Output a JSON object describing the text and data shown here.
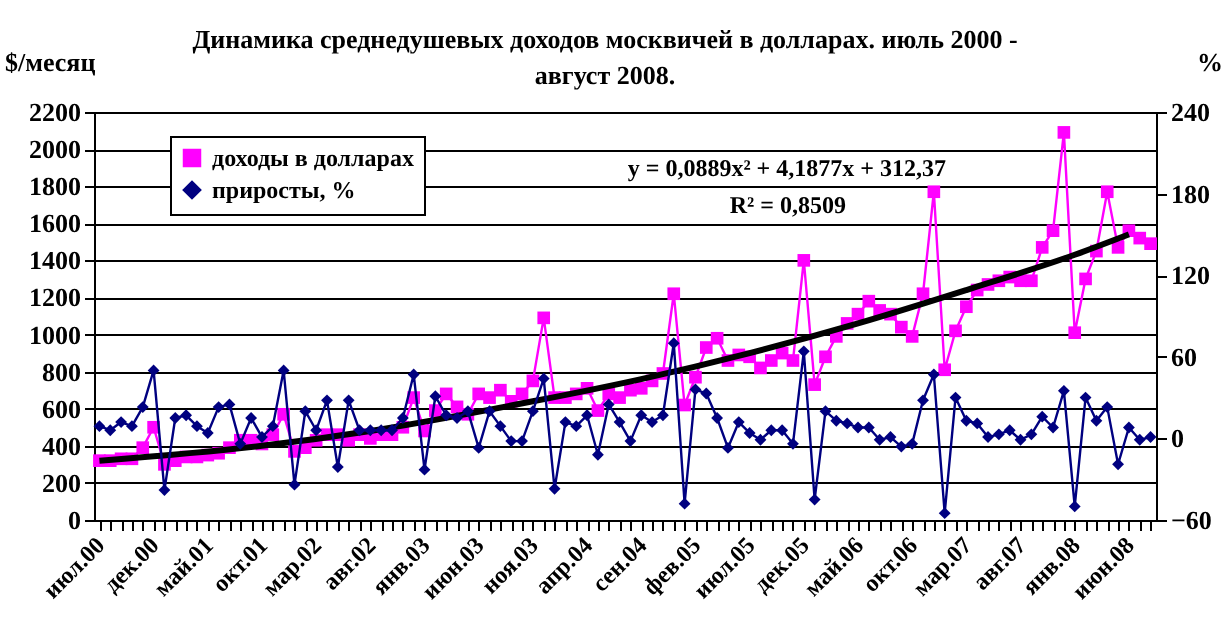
{
  "chart_data": {
    "type": "line",
    "title": "Динамика среднедушевых доходов москвичей в долларах. июль 2000 - август 2008.",
    "ylabel": "$/месяц",
    "y2label": "%",
    "categories": [
      "июл.00",
      null,
      null,
      null,
      null,
      "дек.00",
      null,
      null,
      null,
      null,
      "май.01",
      null,
      null,
      null,
      null,
      "окт.01",
      null,
      null,
      null,
      null,
      "мар.02",
      null,
      null,
      null,
      null,
      "авг.02",
      null,
      null,
      null,
      null,
      "янв.03",
      null,
      null,
      null,
      null,
      "июн.03",
      null,
      null,
      null,
      null,
      "ноя.03",
      null,
      null,
      null,
      null,
      "апр.04",
      null,
      null,
      null,
      null,
      "сен.04",
      null,
      null,
      null,
      null,
      "фев.05",
      null,
      null,
      null,
      null,
      "июл.05",
      null,
      null,
      null,
      null,
      "дек.05",
      null,
      null,
      null,
      null,
      "май.06",
      null,
      null,
      null,
      null,
      "окт.06",
      null,
      null,
      null,
      null,
      "мар.07",
      null,
      null,
      null,
      null,
      "авг.07",
      null,
      null,
      null,
      null,
      "янв.08",
      null,
      null,
      null,
      null,
      "июн.08",
      null,
      null
    ],
    "series": [
      {
        "name": "доходы в долларах",
        "color": "#ff00ff",
        "marker": "square",
        "values": [
          320,
          320,
          330,
          330,
          390,
          500,
          300,
          320,
          340,
          340,
          350,
          360,
          390,
          430,
          430,
          410,
          460,
          570,
          370,
          390,
          430,
          460,
          460,
          430,
          460,
          440,
          460,
          460,
          500,
          660,
          480,
          590,
          680,
          610,
          570,
          680,
          660,
          700,
          640,
          680,
          750,
          1090,
          660,
          660,
          680,
          710,
          590,
          680,
          660,
          700,
          710,
          750,
          790,
          1220,
          620,
          770,
          930,
          980,
          860,
          890,
          880,
          820,
          860,
          900,
          860,
          1400,
          730,
          880,
          990,
          1060,
          1110,
          1180,
          1130,
          1110,
          1040,
          990,
          1220,
          1770,
          810,
          1020,
          1150,
          1240,
          1270,
          1290,
          1310,
          1290,
          1290,
          1470,
          1560,
          2090,
          1010,
          1300,
          1450,
          1770,
          1470,
          1560,
          1520,
          1490
        ]
      },
      {
        "name": "приросты, %",
        "color": "#000080",
        "marker": "diamond",
        "axis": "y2",
        "values": [
          9,
          6,
          12,
          9,
          23,
          50,
          -38,
          15,
          17,
          9,
          4,
          23,
          25,
          -4,
          15,
          1,
          9,
          50,
          -34,
          20,
          6,
          28,
          -21,
          28,
          6,
          6,
          6,
          6,
          15,
          47,
          -23,
          31,
          17,
          15,
          20,
          -7,
          20,
          9,
          -2,
          -2,
          20,
          44,
          -37,
          12,
          9,
          17,
          -12,
          25,
          12,
          -2,
          17,
          12,
          17,
          70,
          -48,
          36,
          33,
          15,
          -7,
          12,
          4,
          -1,
          6,
          6,
          -4,
          64,
          -45,
          20,
          13,
          11,
          8,
          8,
          -1,
          1,
          -6,
          -4,
          28,
          47,
          -55,
          30,
          13,
          11,
          1,
          3,
          6,
          -1,
          3,
          16,
          8,
          35,
          -50,
          30,
          13,
          23,
          -19,
          8,
          -1,
          1
        ]
      },
      {
        "type": "line",
        "color": "#000000",
        "marker": "none",
        "x": [
          "июл.00",
          "окт.01",
          "авг.02",
          "ноя.03",
          "сен.04",
          "июл.05",
          "май.06",
          "мар.07",
          "янв.08",
          "июн.08"
        ],
        "values": [
          320,
          400,
          480,
          640,
          760,
          900,
          1060,
          1240,
          1430,
          1540
        ]
      }
    ],
    "ylim": [
      0,
      2200
    ],
    "yticks": [
      0,
      200,
      400,
      600,
      800,
      1000,
      1200,
      1400,
      1600,
      1800,
      2000,
      2200
    ],
    "y2lim": [
      -60,
      240
    ],
    "y2ticks": [
      -60,
      0,
      60,
      120,
      180,
      240
    ],
    "grid": "y",
    "legend": "top left",
    "annotations": [
      "y = 0,0889x² + 4,1877x + 312,37",
      "R² = 0,8509"
    ]
  }
}
